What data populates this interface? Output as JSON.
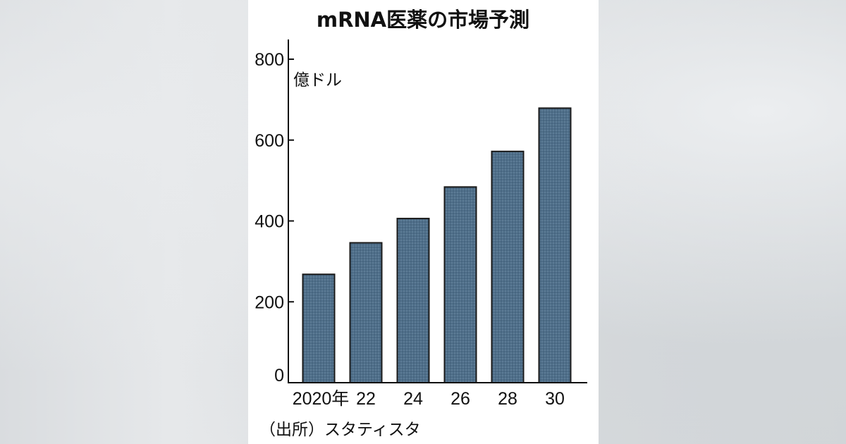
{
  "chart_data": {
    "type": "bar",
    "title": "mRNA医薬の市場予測",
    "unit_label": "億ドル",
    "source": "（出所）スタティスタ",
    "categories": [
      "2020年",
      "22",
      "24",
      "26",
      "28",
      "30"
    ],
    "values": [
      268,
      346,
      406,
      484,
      572,
      679
    ],
    "ylim": [
      0,
      800
    ],
    "yticks": [
      0,
      200,
      400,
      600,
      800
    ],
    "bar_color": "#4f6f8a",
    "bar_edge_color": "#1a1a1a",
    "grid": false,
    "legend": "none"
  }
}
